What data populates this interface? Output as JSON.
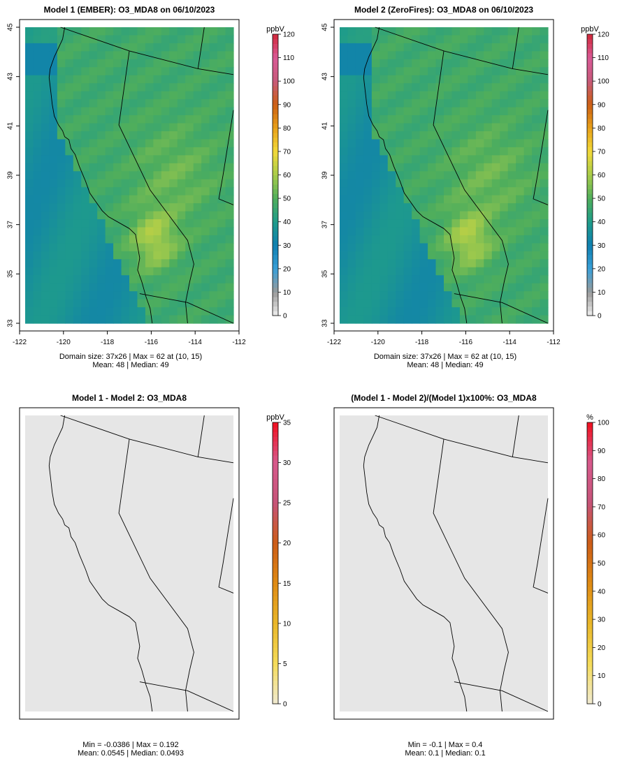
{
  "charts": [
    {
      "type": "heatmap",
      "title": "Model 1 (EMBER): O3_MDA8 on 06/10/2023",
      "unit": "ppbV",
      "stats_line1": "Domain size: 37x26 | Max = 62 at (10, 15)",
      "stats_line2": "Mean: 48 |  Median: 49",
      "x_ticks": [
        "-122",
        "-120",
        "-118",
        "-116",
        "-114",
        "-112"
      ],
      "y_ticks": [
        "33",
        "35",
        "37",
        "39",
        "41",
        "43",
        "45"
      ],
      "xlim": [
        -122,
        -112
      ],
      "ylim": [
        33,
        45
      ],
      "colorbar_ticks": [
        "0",
        "10",
        "20",
        "30",
        "40",
        "50",
        "60",
        "70",
        "80",
        "90",
        "100",
        "110",
        "120"
      ],
      "colorbar_range": [
        0,
        120
      ],
      "field": "ozone"
    },
    {
      "type": "heatmap",
      "title": "Model 2 (ZeroFires): O3_MDA8 on 06/10/2023",
      "unit": "ppbV",
      "stats_line1": "Domain size: 37x26 | Max = 62 at (10, 15)",
      "stats_line2": "Mean: 48 |  Median: 49",
      "x_ticks": [
        "-122",
        "-120",
        "-118",
        "-116",
        "-114",
        "-112"
      ],
      "y_ticks": [
        "33",
        "35",
        "37",
        "39",
        "41",
        "43",
        "45"
      ],
      "xlim": [
        -122,
        -112
      ],
      "ylim": [
        33,
        45
      ],
      "colorbar_ticks": [
        "0",
        "10",
        "20",
        "30",
        "40",
        "50",
        "60",
        "70",
        "80",
        "90",
        "100",
        "110",
        "120"
      ],
      "colorbar_range": [
        0,
        120
      ],
      "field": "ozone"
    },
    {
      "type": "heatmap",
      "title": "Model 1 - Model 2: O3_MDA8",
      "unit": "ppbV",
      "stats_line1": "Min = -0.0386 | Max = 0.192",
      "stats_line2": "Mean: 0.0545 |  Median: 0.0493",
      "colorbar_ticks": [
        "0",
        "5",
        "10",
        "15",
        "20",
        "25",
        "30",
        "35"
      ],
      "colorbar_range": [
        0,
        35
      ],
      "field": "flat"
    },
    {
      "type": "heatmap",
      "title": "(Model 1 - Model 2)/(Model 1)x100%: O3_MDA8",
      "unit": "%",
      "stats_line1": "Min = -0.1 | Max = 0.4",
      "stats_line2": "Mean: 0.1 |  Median: 0.1",
      "colorbar_ticks": [
        "0",
        "10",
        "20",
        "30",
        "40",
        "50",
        "60",
        "70",
        "80",
        "90",
        "100"
      ],
      "colorbar_range": [
        0,
        100
      ],
      "field": "flat"
    }
  ],
  "colors": {
    "flat_fill": "#e6e6e6",
    "ozone_scale": [
      "#eeeeee",
      "#9a9a9a",
      "#3aa0d8",
      "#0f7fb0",
      "#1f9c8a",
      "#4fae5c",
      "#a8cc4a",
      "#f2d93a",
      "#e8a21a",
      "#cc5f14",
      "#c65a7a",
      "#d95a96",
      "#d1283a"
    ],
    "diff_scale": [
      "#f0ead2",
      "#f5dc5a",
      "#e9b72a",
      "#df8b14",
      "#cc5d18",
      "#c65478",
      "#d75a8c",
      "#f01020"
    ]
  }
}
